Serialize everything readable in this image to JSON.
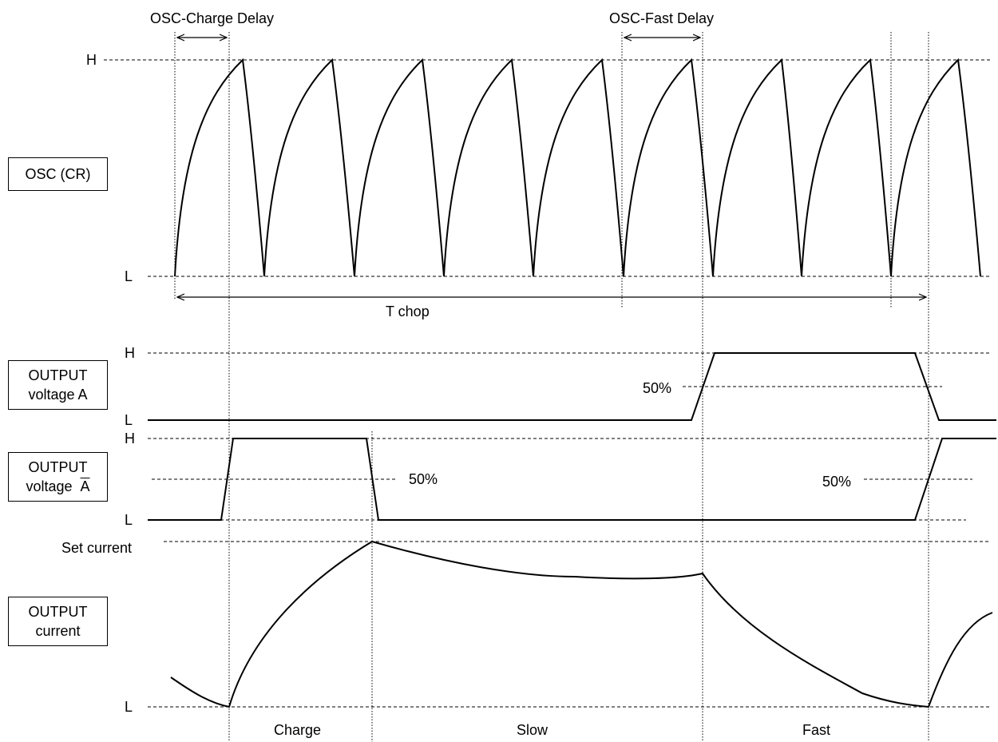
{
  "top_labels": {
    "charge_delay": "OSC-Charge Delay",
    "fast_delay": "OSC-Fast Delay",
    "t_chop": "T chop"
  },
  "levels": {
    "osc_high": "H",
    "osc_low": "L",
    "a_high": "H",
    "a_low": "L",
    "abar_high": "H",
    "abar_low": "L",
    "current_set": "Set current",
    "current_low": "L"
  },
  "boxes": {
    "osc": "OSC (CR)",
    "out_a_line1": "OUTPUT",
    "out_a_line2": "voltage A",
    "out_abar_line1": "OUTPUT",
    "out_abar_line2a": "voltage",
    "out_abar_line2b": "A",
    "out_current_line1": "OUTPUT",
    "out_current_line2": "current"
  },
  "percent_labels": {
    "a_50": "50%",
    "abar_50_left": "50%",
    "abar_50_right": "50%"
  },
  "phases": {
    "charge": "Charge",
    "slow": "Slow",
    "fast": "Fast"
  },
  "colors": {
    "line": "#000000"
  }
}
